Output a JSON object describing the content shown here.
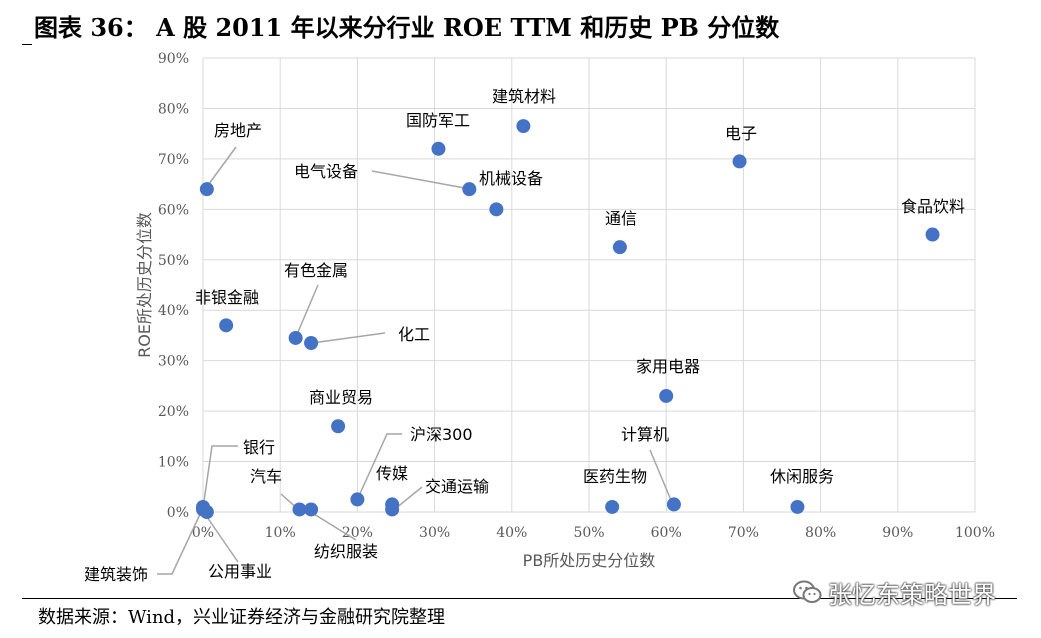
{
  "title": "图表 36：  A 股 2011 年以来分行业 ROE TTM 和历史 PB 分位数",
  "source": "数据来源：Wind，兴业证券经济与金融研究院整理",
  "watermark": {
    "text": "张忆东策略世界",
    "icon": "wechat-logo-icon"
  },
  "chart_data": {
    "type": "scatter",
    "xlabel": "PB所处历史分位数",
    "ylabel": "ROE所处历史分位数",
    "xlim": [
      0,
      100
    ],
    "ylim": [
      0,
      90
    ],
    "x_ticks": [
      "0%",
      "10%",
      "20%",
      "30%",
      "40%",
      "50%",
      "60%",
      "70%",
      "80%",
      "90%",
      "100%"
    ],
    "y_ticks": [
      "0%",
      "10%",
      "20%",
      "30%",
      "40%",
      "50%",
      "60%",
      "70%",
      "80%",
      "90%"
    ],
    "grid": true,
    "point_color": "#4472C4",
    "points": [
      {
        "label": "房地产",
        "x": 0.5,
        "y": 64
      },
      {
        "label": "建筑材料",
        "x": 41.5,
        "y": 76.5
      },
      {
        "label": "国防军工",
        "x": 30.5,
        "y": 72
      },
      {
        "label": "电子",
        "x": 69.5,
        "y": 69.5
      },
      {
        "label": "电气设备",
        "x": 34.5,
        "y": 64
      },
      {
        "label": "机械设备",
        "x": 38,
        "y": 60
      },
      {
        "label": "食品饮料",
        "x": 94.5,
        "y": 55
      },
      {
        "label": "通信",
        "x": 54,
        "y": 52.5
      },
      {
        "label": "非银金融",
        "x": 3,
        "y": 37
      },
      {
        "label": "有色金属",
        "x": 12,
        "y": 34.5
      },
      {
        "label": "化工",
        "x": 14,
        "y": 33.5
      },
      {
        "label": "家用电器",
        "x": 60,
        "y": 23
      },
      {
        "label": "商业贸易",
        "x": 17.5,
        "y": 17
      },
      {
        "label": "沪深300",
        "x": 20,
        "y": 2.5
      },
      {
        "label": "银行",
        "x": 0,
        "y": 1
      },
      {
        "label": "汽车",
        "x": 12.5,
        "y": 0.5
      },
      {
        "label": "纺织服装",
        "x": 14,
        "y": 0.5
      },
      {
        "label": "传媒",
        "x": 24.5,
        "y": 1.5
      },
      {
        "label": "交通运输",
        "x": 24.5,
        "y": 0.5
      },
      {
        "label": "医药生物",
        "x": 53,
        "y": 1
      },
      {
        "label": "计算机",
        "x": 61,
        "y": 1.5
      },
      {
        "label": "休闲服务",
        "x": 77,
        "y": 1
      },
      {
        "label": "建筑装饰",
        "x": 0,
        "y": 0.5
      },
      {
        "label": "公用事业",
        "x": 0.5,
        "y": 0
      }
    ]
  }
}
